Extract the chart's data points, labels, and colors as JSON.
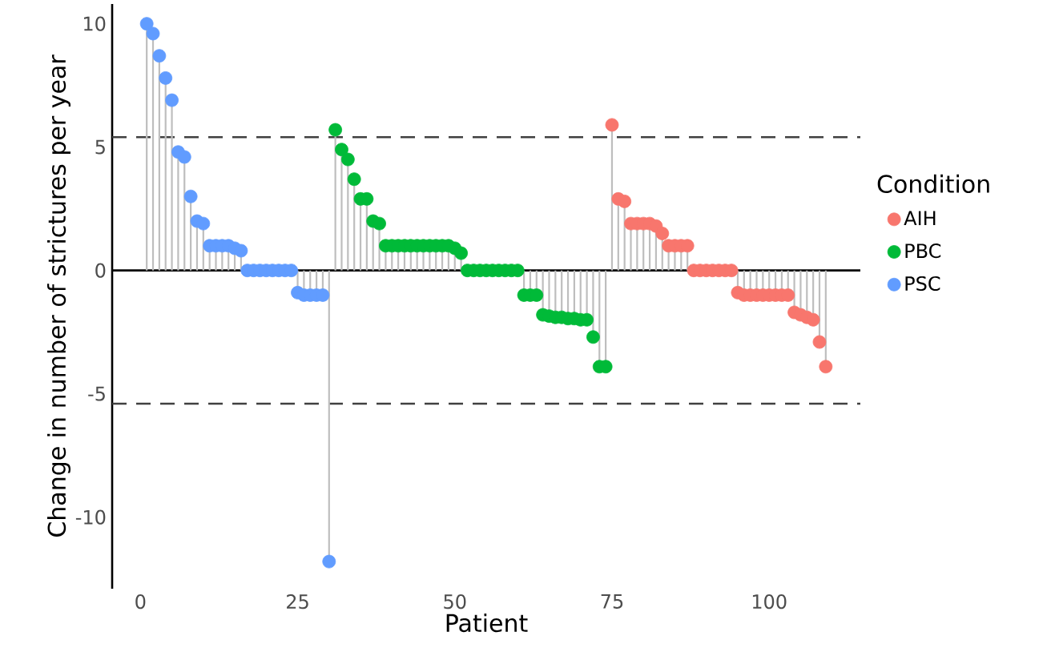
{
  "chart_data": {
    "type": "lollipop",
    "xlabel": "Patient",
    "ylabel": "Change in number of strictures per year",
    "legend_title": "Condition",
    "xlim": [
      -4.5,
      114.5
    ],
    "ylim": [
      -12.9,
      10.8
    ],
    "xticks": [
      0,
      25,
      50,
      75,
      100
    ],
    "yticks": [
      -10,
      -5,
      0,
      5,
      10
    ],
    "legend": "right",
    "ref_lines": [
      {
        "axis": "y",
        "value": 0,
        "color": "#000000",
        "line_style": "solid"
      },
      {
        "axis": "y",
        "value": 5.4,
        "color": "#404040",
        "line_style": "dashed"
      },
      {
        "axis": "y",
        "value": -5.4,
        "color": "#404040",
        "line_style": "dashed"
      }
    ],
    "series": [
      {
        "name": "AIH",
        "color": "#F8766D",
        "x": [
          75,
          76,
          77,
          78,
          79,
          80,
          81,
          82,
          83,
          84,
          85,
          86,
          87,
          88,
          89,
          90,
          91,
          92,
          93,
          94,
          95,
          96,
          97,
          98,
          99,
          100,
          101,
          102,
          103,
          104,
          105,
          106,
          107,
          108,
          109
        ],
        "values": [
          5.9,
          2.9,
          2.8,
          1.9,
          1.9,
          1.9,
          1.9,
          1.8,
          1.5,
          1.0,
          1.0,
          1.0,
          1.0,
          0,
          0,
          0,
          0,
          0,
          0,
          0,
          -0.9,
          -1.0,
          -1.0,
          -1.0,
          -1.0,
          -1.0,
          -1.0,
          -1.0,
          -1.0,
          -1.7,
          -1.8,
          -1.9,
          -2.0,
          -2.9,
          -3.9
        ]
      },
      {
        "name": "PBC",
        "color": "#00BA38",
        "x": [
          31,
          32,
          33,
          34,
          35,
          36,
          37,
          38,
          39,
          40,
          41,
          42,
          43,
          44,
          45,
          46,
          47,
          48,
          49,
          50,
          51,
          52,
          53,
          54,
          55,
          56,
          57,
          58,
          59,
          60,
          61,
          62,
          63,
          64,
          65,
          66,
          67,
          68,
          69,
          70,
          71,
          72,
          73,
          74
        ],
        "values": [
          5.7,
          4.9,
          4.5,
          3.7,
          2.9,
          2.9,
          2.0,
          1.9,
          1.0,
          1.0,
          1.0,
          1.0,
          1.0,
          1.0,
          1.0,
          1.0,
          1.0,
          1.0,
          1.0,
          0.9,
          0.7,
          0,
          0,
          0,
          0,
          0,
          0,
          0,
          0,
          0,
          -1.0,
          -1.0,
          -1.0,
          -1.8,
          -1.85,
          -1.9,
          -1.9,
          -1.95,
          -1.95,
          -2.0,
          -2.0,
          -2.7,
          -3.9,
          -3.9
        ]
      },
      {
        "name": "PSC",
        "color": "#619CFF",
        "x": [
          1,
          2,
          3,
          4,
          5,
          6,
          7,
          8,
          9,
          10,
          11,
          12,
          13,
          14,
          15,
          16,
          17,
          18,
          19,
          20,
          21,
          22,
          23,
          24,
          25,
          26,
          27,
          28,
          29,
          30
        ],
        "values": [
          10.0,
          9.6,
          8.7,
          7.8,
          6.9,
          4.8,
          4.6,
          3.0,
          2.0,
          1.9,
          1.0,
          1.0,
          1.0,
          1.0,
          0.9,
          0.8,
          0,
          0,
          0,
          0,
          0,
          0,
          0,
          0,
          -0.9,
          -1.0,
          -1.0,
          -1.0,
          -1.0,
          -11.8
        ]
      }
    ]
  }
}
